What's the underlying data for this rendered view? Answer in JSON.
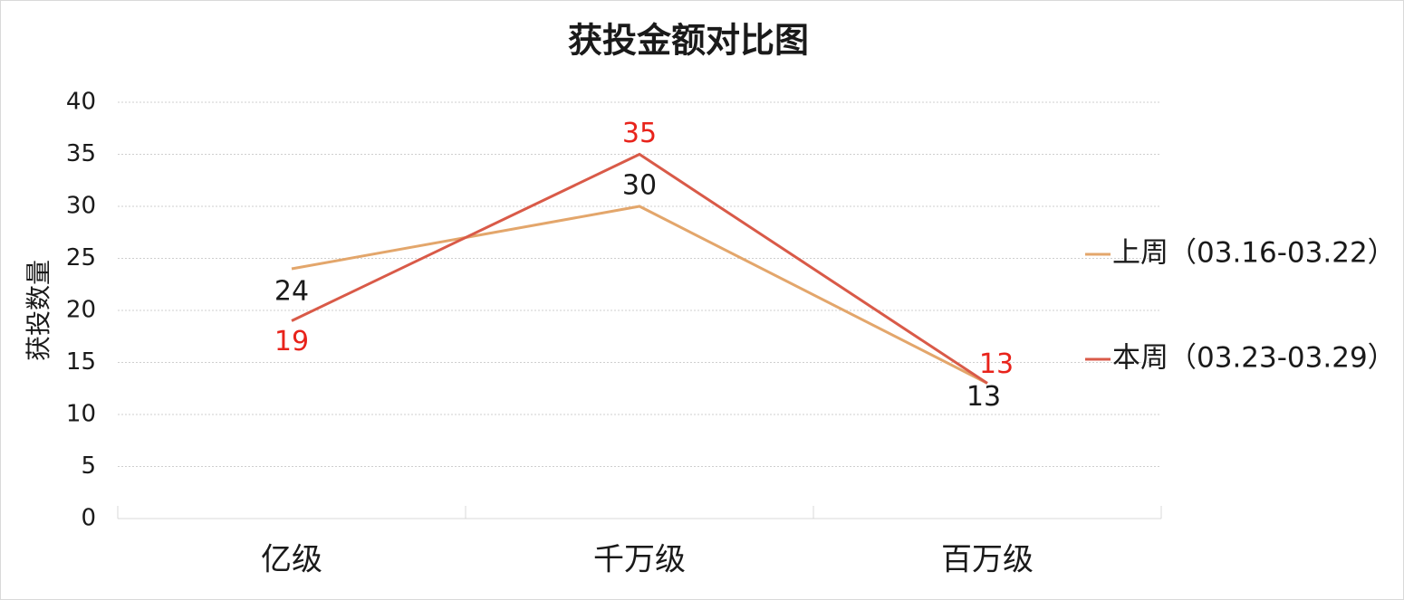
{
  "chart_data": {
    "type": "line",
    "title": "获投金额对比图",
    "y_label": "获投数量",
    "categories": [
      "亿级",
      "千万级",
      "百万级"
    ],
    "series": [
      {
        "name": "上周（03.16-03.22）",
        "color": "#e3a66b",
        "label_color": "#1a1a1a",
        "values": [
          24,
          30,
          13
        ]
      },
      {
        "name": "本周（03.23-03.29）",
        "color": "#d95a48",
        "label_color": "#e8231b",
        "values": [
          19,
          35,
          13
        ]
      }
    ],
    "ylim": [
      0,
      40
    ],
    "yticks": [
      0,
      5,
      10,
      15,
      20,
      25,
      30,
      35,
      40
    ],
    "grid": true,
    "legend": "right"
  }
}
